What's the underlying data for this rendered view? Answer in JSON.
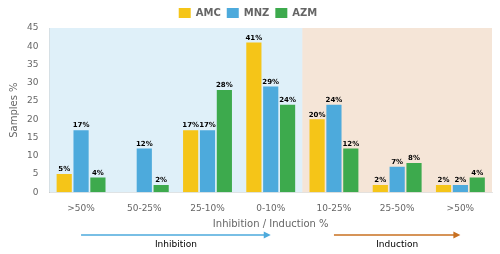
{
  "chart_data": {
    "type": "bar",
    "categories": [
      ">50%",
      "50-25%",
      "25-10%",
      "0-10%",
      "10-25%",
      "25-50%",
      ">50%"
    ],
    "series": [
      {
        "name": "AMC",
        "color": "#F5C518",
        "values": [
          5,
          0,
          17,
          41,
          20,
          2,
          2
        ],
        "value_labels": [
          "5%",
          null,
          "17%",
          "41%",
          "20%",
          "2%",
          "2%"
        ]
      },
      {
        "name": "MNZ",
        "color": "#4DAADC",
        "values": [
          17,
          12,
          17,
          29,
          24,
          7,
          2
        ],
        "value_labels": [
          "17%",
          "12%",
          "17%",
          "29%",
          "24%",
          "7%",
          "2%"
        ]
      },
      {
        "name": "AZM",
        "color": "#3DAA4D",
        "values": [
          4,
          2,
          28,
          24,
          12,
          8,
          4
        ],
        "value_labels": [
          "4%",
          "2%",
          "28%",
          "24%",
          "12%",
          "8%",
          "4%"
        ]
      }
    ],
    "xlabel": "Inhibition / Induction %",
    "ylabel": "Samples %",
    "ylim": [
      0,
      45
    ],
    "yticks": [
      0,
      5,
      10,
      15,
      20,
      25,
      30,
      35,
      40,
      45
    ],
    "grid": false,
    "legend": "top",
    "data_labels": true,
    "annotations": [
      {
        "text": "Inhibition",
        "color": "#4DAADC",
        "start": 0,
        "end": 3
      },
      {
        "text": "Induction",
        "color": "#C87020",
        "start": 4,
        "end": 6
      }
    ]
  }
}
